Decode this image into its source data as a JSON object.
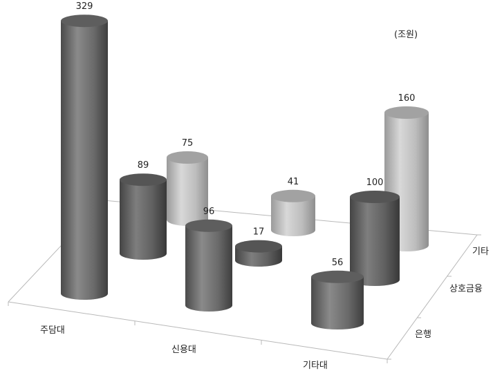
{
  "chart_data": {
    "type": "bar",
    "subtype": "3d-cylinder",
    "unit_label": "(조원)",
    "categories": [
      "주담대",
      "신용대",
      "기타대"
    ],
    "series": [
      {
        "name": "은행",
        "values": [
          329,
          96,
          56
        ],
        "color": "#6b6b6b"
      },
      {
        "name": "상호금융",
        "values": [
          89,
          17,
          100
        ],
        "color": "#626262"
      },
      {
        "name": "기타",
        "values": [
          75,
          41,
          160
        ],
        "color": "#b5b5b5"
      }
    ],
    "depth_axis_labels": [
      "은행",
      "상호금융",
      "기타"
    ],
    "grid": false,
    "legend": "none"
  }
}
